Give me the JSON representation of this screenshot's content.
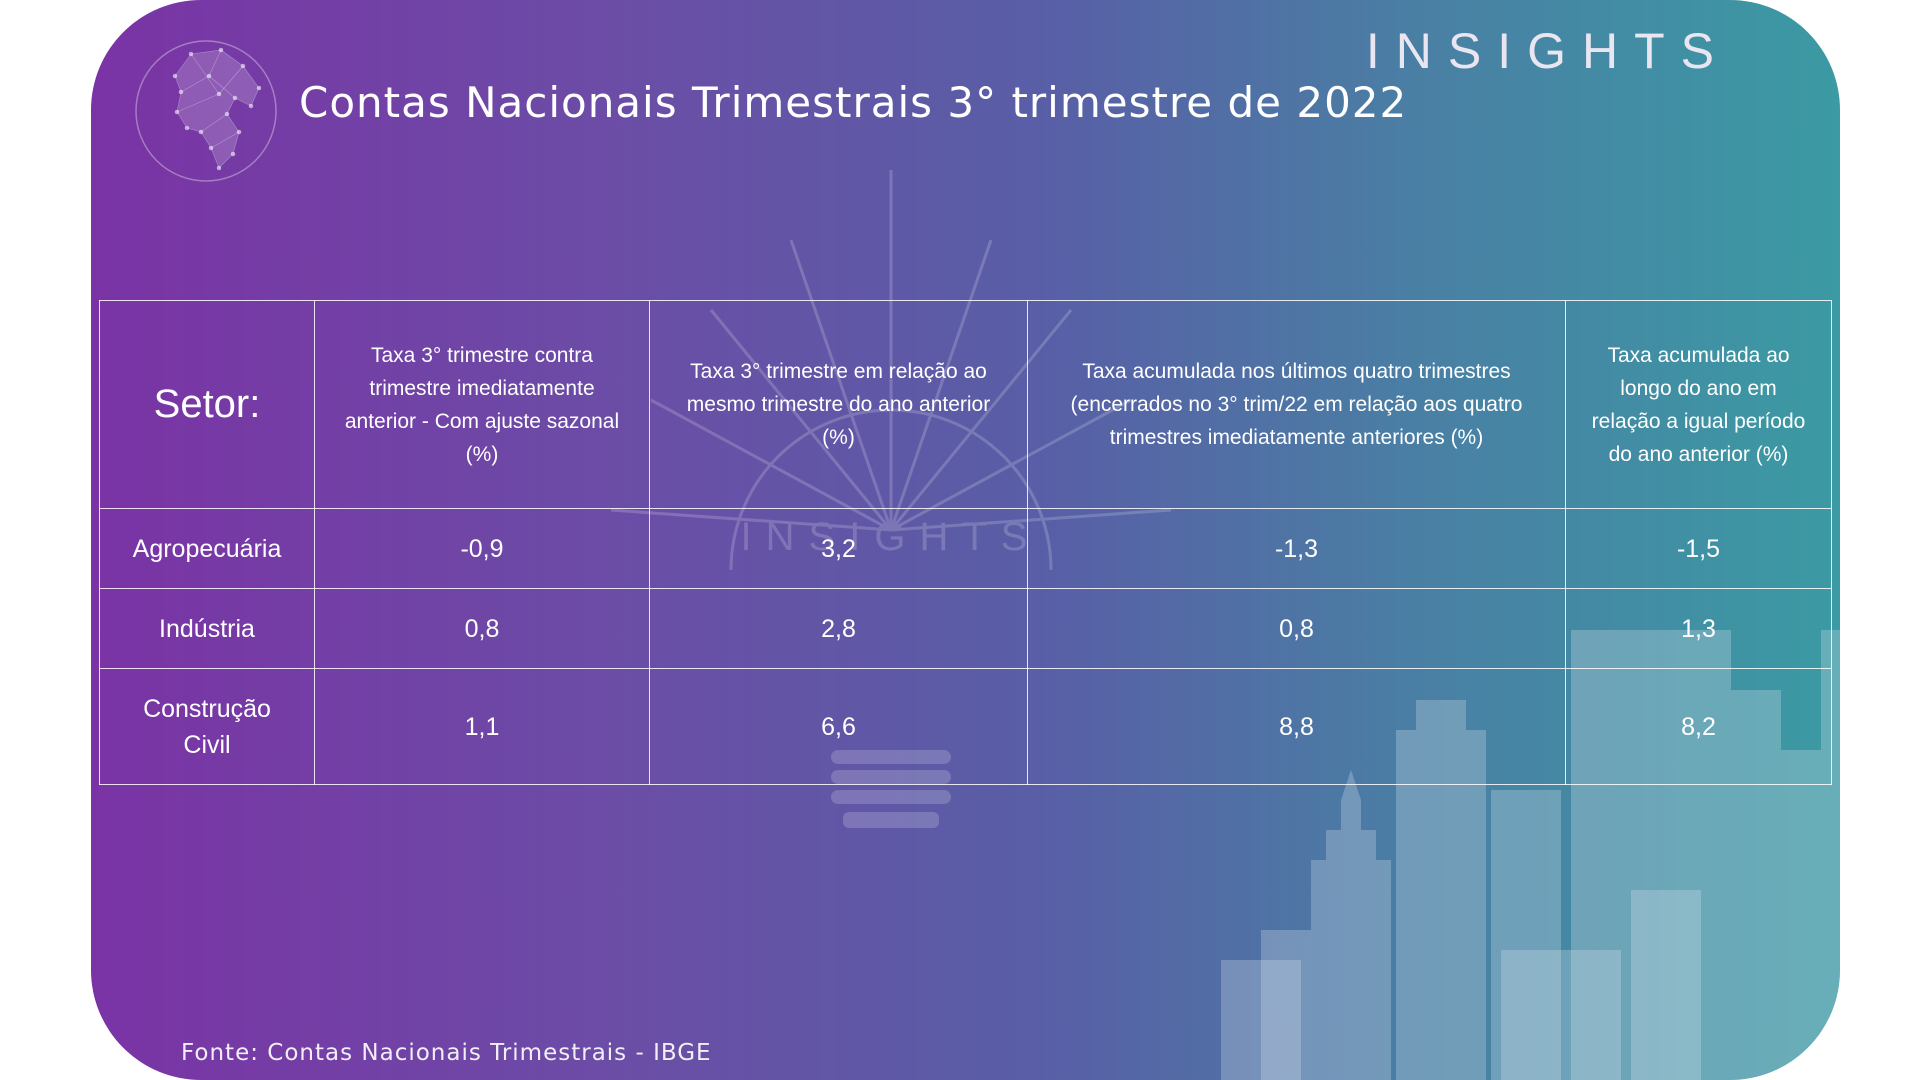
{
  "brand": "INSIGHTS",
  "title": "Contas Nacionais Trimestrais 3° trimestre de 2022",
  "table": {
    "headers": [
      "Setor:",
      "Taxa 3° trimestre contra trimestre imediatamente anterior - Com ajuste sazonal (%)",
      "Taxa 3° trimestre em relação ao mesmo trimestre do ano anterior (%)",
      "Taxa acumulada nos últimos quatro trimestres (encerrados no 3° trim/22 em relação aos quatro trimestres imediatamente anteriores (%)",
      "Taxa acumulada ao longo do ano em relação a igual período do ano anterior (%)"
    ],
    "rows": [
      [
        "Agropecuária",
        "-0,9",
        "3,2",
        "-1,3",
        "-1,5"
      ],
      [
        "Indústria",
        "0,8",
        "2,8",
        "0,8",
        "1,3"
      ],
      [
        "Construção Civil",
        "1,1",
        "6,6",
        "8,8",
        "8,2"
      ]
    ]
  },
  "watermark_text": "INSIGHTS",
  "source": "Fonte: Contas Nacionais Trimestrais - IBGE",
  "colors": {
    "gradient_start": "#7a33a5",
    "gradient_end": "#3b9aa3",
    "text": "#ffffff"
  }
}
